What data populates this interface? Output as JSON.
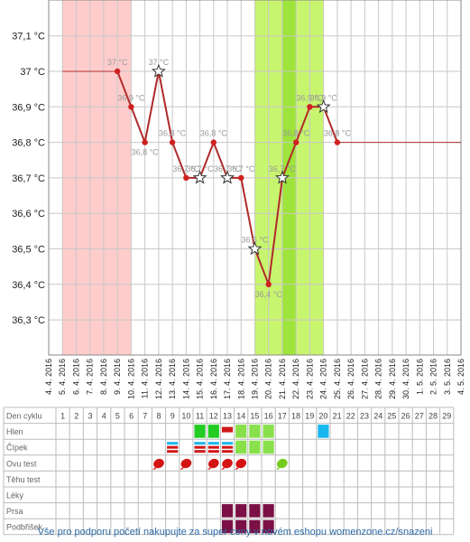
{
  "chart_data": {
    "type": "line",
    "y_unit": "°C",
    "ylim": [
      36.2,
      37.2
    ],
    "yticks": [
      "36,3 °C",
      "36,4 °C",
      "36,5 °C",
      "36,6 °C",
      "36,7 °C",
      "36,8 °C",
      "36,9 °C",
      "37 °C",
      "37,1 °C"
    ],
    "dates": [
      "4. 4. 2016",
      "5. 4. 2016",
      "6. 4. 2016",
      "7. 4. 2016",
      "8. 4. 2016",
      "9. 4. 2016",
      "10. 4. 2016",
      "11. 4. 2016",
      "12. 4. 2016",
      "13. 4. 2016",
      "14. 4. 2016",
      "15. 4. 2016",
      "16. 4. 2016",
      "17. 4. 2016",
      "18. 4. 2016",
      "19. 4. 2016",
      "20. 4. 2016",
      "21. 4. 2016",
      "22. 4. 2016",
      "23. 4. 2016",
      "24. 4. 2016",
      "25. 4. 2016",
      "26. 4. 2016",
      "27. 4. 2016",
      "28. 4. 2016",
      "29. 4. 2016",
      "30. 4. 2016",
      "1. 5. 2016",
      "2. 5. 2016",
      "3. 5. 2016",
      "4. 5. 2016"
    ],
    "bands": [
      {
        "from": "5. 4. 2016",
        "to": "10. 4. 2016",
        "color": "#ffcccc"
      },
      {
        "from": "19. 4. 2016",
        "to": "24. 4. 2016",
        "color": "#c8f56e"
      },
      {
        "from": "21. 4. 2016",
        "to": "22. 4. 2016",
        "color": "#9ee43a"
      }
    ],
    "series": [
      {
        "x": [
          "9. 4. 2016",
          "10. 4. 2016",
          "11. 4. 2016",
          "12. 4. 2016",
          "13. 4. 2016",
          "14. 4. 2016",
          "15. 4. 2016",
          "16. 4. 2016",
          "17. 4. 2016",
          "18. 4. 2016",
          "19. 4. 2016",
          "20. 4. 2016",
          "21. 4. 2016",
          "22. 4. 2016",
          "23. 4. 2016",
          "24. 4. 2016",
          "25. 4. 2016"
        ],
        "y": [
          37.0,
          36.9,
          36.8,
          37.0,
          36.8,
          36.7,
          36.7,
          36.8,
          36.7,
          36.7,
          36.5,
          36.4,
          36.7,
          36.8,
          36.9,
          36.9,
          36.8
        ],
        "labels": [
          "37 °C",
          "36,9 °C",
          "36,8 °C",
          "37 °C",
          "36,8 °C",
          "36,7 °C",
          "36,7 °C",
          "36,8 °C",
          "36,7 °C",
          "36,7 °C",
          "36,5 °C",
          "36,4 °C",
          "36,7 °C",
          "36,8 °C",
          "36,9 °C",
          "36,9 °C",
          "36,8 °C"
        ],
        "markers": [
          "dot",
          "dot",
          "dot",
          "star",
          "dot",
          "dot",
          "star",
          "dot",
          "star",
          "dot",
          "star",
          "dot",
          "star",
          "dot",
          "dot",
          "star",
          "dot"
        ]
      }
    ],
    "flat_lines": [
      {
        "from": "5. 4. 2016",
        "to": "9. 4. 2016",
        "y": 37.0
      },
      {
        "from": "25. 4. 2016",
        "to": "4. 5. 2016",
        "y": 36.8
      }
    ],
    "grid": true
  },
  "cycle_table": {
    "header": "Den cyklu",
    "days": [
      "1",
      "2",
      "3",
      "4",
      "5",
      "6",
      "7",
      "8",
      "9",
      "10",
      "11",
      "12",
      "13",
      "14",
      "15",
      "16",
      "17",
      "18",
      "19",
      "20",
      "21",
      "22",
      "23",
      "24",
      "25",
      "26",
      "27",
      "28",
      "29"
    ],
    "rows": [
      {
        "label": "Hlen",
        "cells": [
          {
            "day": 11,
            "kind": "green"
          },
          {
            "day": 12,
            "kind": "green"
          },
          {
            "day": 13,
            "kind": "redbar"
          },
          {
            "day": 14,
            "kind": "lightgreen"
          },
          {
            "day": 15,
            "kind": "lightgreen"
          },
          {
            "day": 16,
            "kind": "lightgreen"
          },
          {
            "day": 20,
            "kind": "blue"
          }
        ]
      },
      {
        "label": "Čípek",
        "cells": [
          {
            "day": 9,
            "kind": "stripes"
          },
          {
            "day": 11,
            "kind": "stripes"
          },
          {
            "day": 12,
            "kind": "stripes"
          },
          {
            "day": 13,
            "kind": "stripes"
          },
          {
            "day": 14,
            "kind": "lightgreen"
          },
          {
            "day": 15,
            "kind": "lightgreen"
          },
          {
            "day": 16,
            "kind": "lightgreen"
          }
        ]
      },
      {
        "label": "Ovu test",
        "cells": [
          {
            "day": 8,
            "kind": "drop-red"
          },
          {
            "day": 10,
            "kind": "drop-red"
          },
          {
            "day": 12,
            "kind": "drop-red"
          },
          {
            "day": 13,
            "kind": "drop-red"
          },
          {
            "day": 14,
            "kind": "drop-red"
          },
          {
            "day": 17,
            "kind": "drop-green"
          }
        ]
      },
      {
        "label": "Těhu test",
        "cells": []
      },
      {
        "label": "Léky",
        "cells": []
      },
      {
        "label": "Prsa",
        "cells": [
          {
            "day": 13,
            "kind": "maroon"
          },
          {
            "day": 14,
            "kind": "maroon"
          },
          {
            "day": 15,
            "kind": "maroon"
          },
          {
            "day": 16,
            "kind": "maroon"
          }
        ]
      },
      {
        "label": "Podbřišek",
        "cells": [
          {
            "day": 13,
            "kind": "maroon"
          },
          {
            "day": 14,
            "kind": "maroon"
          },
          {
            "day": 15,
            "kind": "maroon"
          },
          {
            "day": 16,
            "kind": "maroon"
          }
        ]
      }
    ]
  },
  "footer": "Vše pro podporu početí nakupujte za super ceny v novém eshopu womenzone.cz/snazeni"
}
